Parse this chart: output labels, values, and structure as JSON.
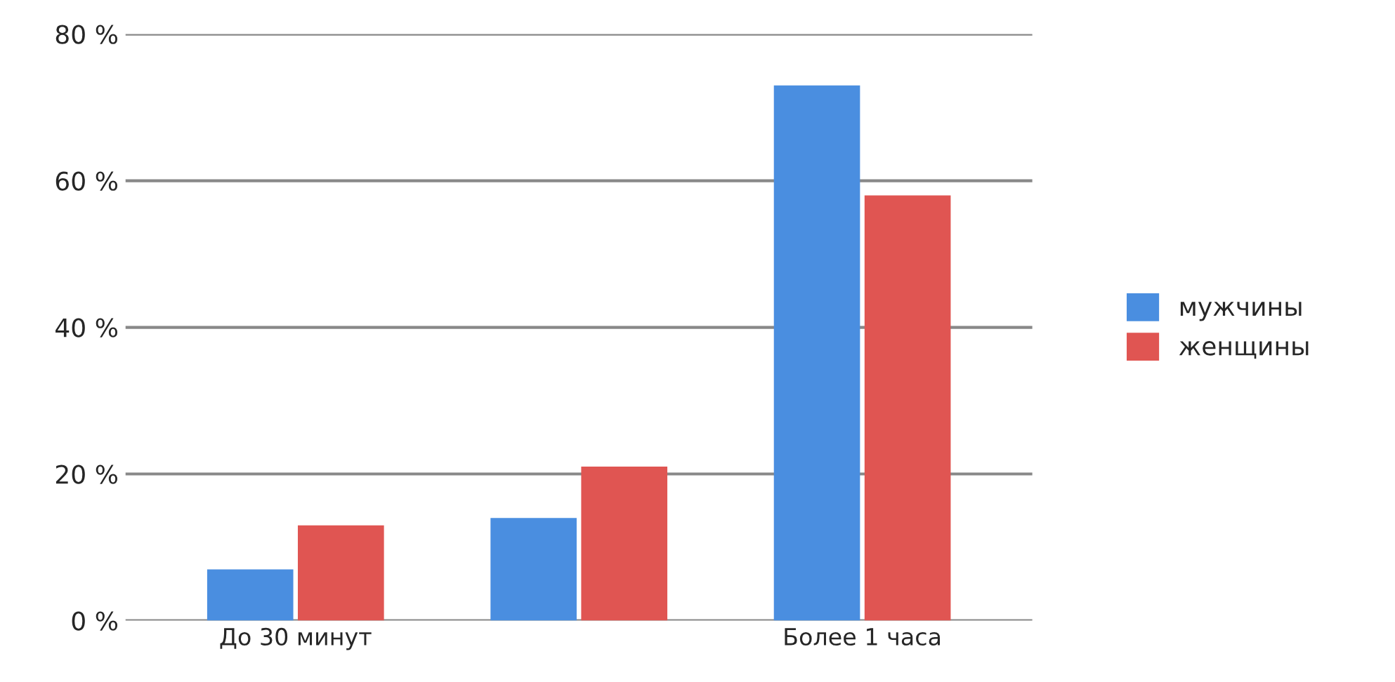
{
  "chart_data": {
    "type": "bar",
    "categories": [
      "До 30 минут",
      null,
      "Более 1 часа"
    ],
    "series": [
      {
        "name": "мужчины",
        "color": "#4a8ee0",
        "values": [
          7,
          14,
          73
        ]
      },
      {
        "name": "женщины",
        "color": "#e05552",
        "values": [
          13,
          21,
          58
        ]
      }
    ],
    "ylim": [
      0,
      80
    ],
    "yticks": [
      {
        "value": 0,
        "label": "0 %"
      },
      {
        "value": 20,
        "label": "20 %"
      },
      {
        "value": 40,
        "label": "40 %"
      },
      {
        "value": 60,
        "label": "60 %"
      },
      {
        "value": 80,
        "label": "80 %"
      }
    ],
    "grid": "y",
    "legend": "right"
  }
}
